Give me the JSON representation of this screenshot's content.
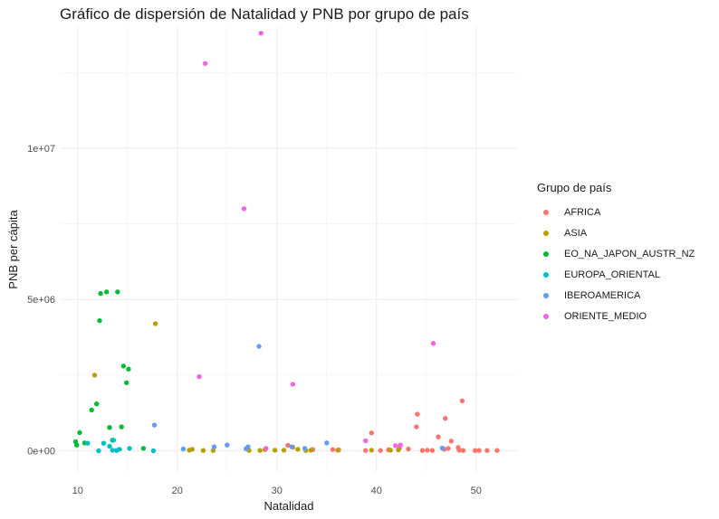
{
  "chart_data": {
    "type": "scatter",
    "title": "Gráfico de dispersión de Natalidad y PNB por grupo de país",
    "xlabel": "Natalidad",
    "ylabel": "PNB per cápita",
    "xlim": [
      8.2,
      54.2
    ],
    "ylim": [
      -700000,
      14000000
    ],
    "x_ticks": [
      10,
      20,
      30,
      40,
      50
    ],
    "x_tick_labels": [
      "10",
      "20",
      "30",
      "40",
      "50"
    ],
    "y_ticks": [
      0,
      5000000,
      10000000
    ],
    "y_tick_labels": [
      "0e+00",
      "5e+06",
      "1e+07"
    ],
    "grid": true,
    "legend_title": "Grupo de país",
    "legend_position": "right",
    "series": [
      {
        "name": "AFRICA",
        "color": "#F8766D",
        "points": [
          [
            31.1,
            180000
          ],
          [
            33.6,
            40000
          ],
          [
            35.6,
            40000
          ],
          [
            36.2,
            30000
          ],
          [
            38.9,
            10000
          ],
          [
            39.5,
            590000
          ],
          [
            40.4,
            10000
          ],
          [
            41.2,
            30000
          ],
          [
            42.3,
            90000
          ],
          [
            43.2,
            60000
          ],
          [
            44.0,
            790000
          ],
          [
            44.1,
            1210000
          ],
          [
            44.6,
            10000
          ],
          [
            45.1,
            20000
          ],
          [
            45.6,
            10000
          ],
          [
            46.2,
            460000
          ],
          [
            46.8,
            50000
          ],
          [
            46.9,
            1070000
          ],
          [
            47.2,
            80000
          ],
          [
            47.5,
            320000
          ],
          [
            48.2,
            110000
          ],
          [
            48.3,
            20000
          ],
          [
            48.7,
            10000
          ],
          [
            48.6,
            1650000
          ],
          [
            49.9,
            10000
          ],
          [
            50.3,
            10000
          ],
          [
            51.1,
            10000
          ],
          [
            52.1,
            10000
          ]
        ]
      },
      {
        "name": "ASIA",
        "color": "#B79F00",
        "points": [
          [
            11.7,
            2500000
          ],
          [
            17.8,
            4200000
          ],
          [
            21.2,
            20000
          ],
          [
            21.5,
            50000
          ],
          [
            22.6,
            10000
          ],
          [
            23.6,
            10000
          ],
          [
            27.2,
            10000
          ],
          [
            28.3,
            10000
          ],
          [
            28.8,
            40000
          ],
          [
            29.8,
            20000
          ],
          [
            30.7,
            20000
          ],
          [
            31.6,
            120000
          ],
          [
            32.1,
            50000
          ],
          [
            32.9,
            10000
          ],
          [
            33.4,
            20000
          ],
          [
            36.1,
            20000
          ],
          [
            39.5,
            20000
          ],
          [
            41.4,
            20000
          ],
          [
            42.2,
            30000
          ]
        ]
      },
      {
        "name": "EO_NA_JAPON_AUSTR_NZ",
        "color": "#00BA38",
        "points": [
          [
            9.8,
            300000
          ],
          [
            9.9,
            190000
          ],
          [
            10.2,
            600000
          ],
          [
            10.7,
            260000
          ],
          [
            11.4,
            1350000
          ],
          [
            11.9,
            1550000
          ],
          [
            12.2,
            4300000
          ],
          [
            12.3,
            5200000
          ],
          [
            12.9,
            5250000
          ],
          [
            13.2,
            770000
          ],
          [
            13.5,
            350000
          ],
          [
            14.0,
            5250000
          ],
          [
            14.4,
            790000
          ],
          [
            14.6,
            2800000
          ],
          [
            14.9,
            2250000
          ],
          [
            15.1,
            2700000
          ],
          [
            16.6,
            80000
          ]
        ]
      },
      {
        "name": "EUROPA_ORIENTAL",
        "color": "#00BFC4",
        "points": [
          [
            11.0,
            250000
          ],
          [
            12.1,
            0
          ],
          [
            12.6,
            250000
          ],
          [
            13.2,
            150000
          ],
          [
            13.5,
            20000
          ],
          [
            13.6,
            350000
          ],
          [
            13.9,
            10000
          ],
          [
            14.2,
            50000
          ],
          [
            15.2,
            80000
          ],
          [
            17.6,
            0
          ]
        ]
      },
      {
        "name": "IBEROAMERICA",
        "color": "#619CFF",
        "points": [
          [
            17.7,
            850000
          ],
          [
            20.6,
            60000
          ],
          [
            23.7,
            130000
          ],
          [
            25.0,
            190000
          ],
          [
            26.9,
            70000
          ],
          [
            27.1,
            130000
          ],
          [
            28.2,
            3450000
          ],
          [
            31.5,
            130000
          ],
          [
            32.8,
            80000
          ],
          [
            35.0,
            260000
          ],
          [
            46.6,
            90000
          ]
        ]
      },
      {
        "name": "ORIENTE_MEDIO",
        "color": "#F564E3",
        "points": [
          [
            22.2,
            2450000
          ],
          [
            22.8,
            12800000
          ],
          [
            26.7,
            8000000
          ],
          [
            28.4,
            13800000
          ],
          [
            28.9,
            80000
          ],
          [
            31.6,
            2200000
          ],
          [
            38.9,
            330000
          ],
          [
            41.9,
            170000
          ],
          [
            42.4,
            190000
          ],
          [
            45.7,
            3550000
          ]
        ]
      }
    ]
  }
}
